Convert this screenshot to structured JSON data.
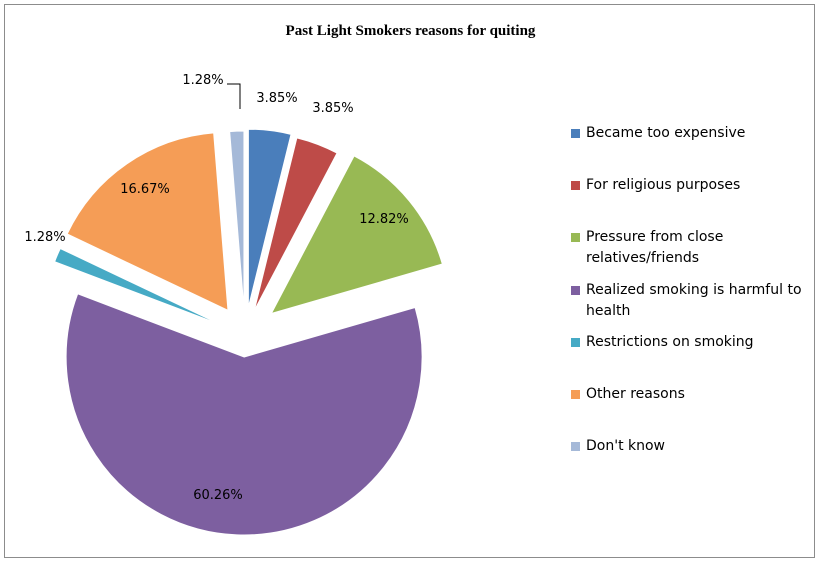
{
  "chart_data": {
    "type": "pie",
    "title": "Past Light Smokers reasons for quiting",
    "slices": [
      {
        "label": "Became too expensive",
        "value": 3.85,
        "value_label": "3.85%",
        "color": "#4a7ebb"
      },
      {
        "label": "For religious purposes",
        "value": 3.85,
        "value_label": "3.85%",
        "color": "#be4b48"
      },
      {
        "label": "Pressure from close relatives/friends",
        "value": 12.82,
        "value_label": "12.82%",
        "color": "#98b954"
      },
      {
        "label": "Realized smoking is harmful to health",
        "value": 60.26,
        "value_label": "60.26%",
        "color": "#7d5fa0"
      },
      {
        "label": "Restrictions on smoking",
        "value": 1.28,
        "value_label": "1.28%",
        "color": "#46aac5"
      },
      {
        "label": "Other reasons",
        "value": 16.67,
        "value_label": "16.67%",
        "color": "#f59d56"
      },
      {
        "label": "Don't know",
        "value": 1.28,
        "value_label": "1.28%",
        "color": "#a5b9d8"
      }
    ],
    "legend_position": "right",
    "exploded": true
  }
}
